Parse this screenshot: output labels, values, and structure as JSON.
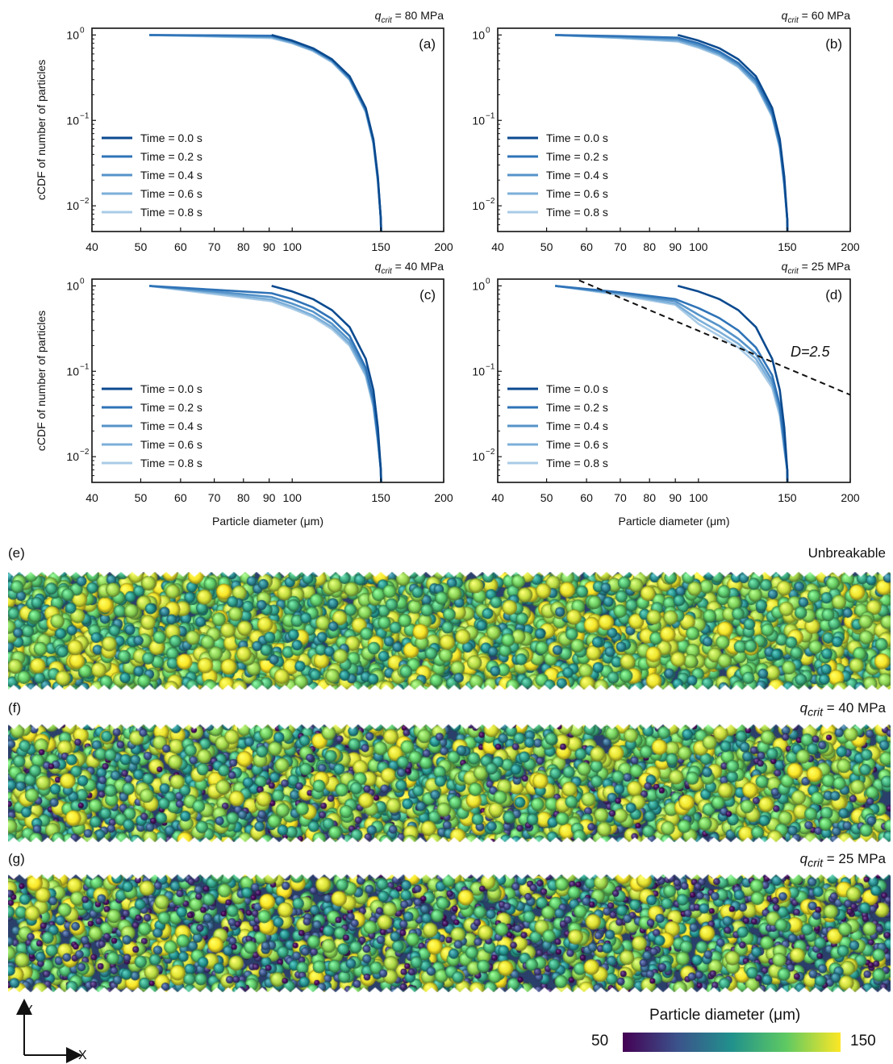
{
  "chart_data": [
    {
      "panel_label": "(a)",
      "corner_label": "= 80 MPa",
      "type": "line",
      "xscale": "log",
      "yscale": "log",
      "xlim": [
        40,
        200
      ],
      "ylim": [
        0.005,
        1.2
      ],
      "xticks": [
        "40",
        "50",
        "60",
        "70",
        "80",
        "90",
        "100",
        "150",
        "200"
      ],
      "ylabel": "cCDF of number of particles",
      "xlabel": "",
      "series": [
        {
          "name": "Time = 0.0 s",
          "x": [
            91,
            100,
            110,
            120,
            130,
            140,
            145,
            148,
            150,
            150.2
          ],
          "y": [
            1.0,
            0.86,
            0.7,
            0.52,
            0.33,
            0.14,
            0.06,
            0.022,
            0.007,
            0.005
          ]
        },
        {
          "name": "Time = 0.2 s",
          "x": [
            52,
            70,
            91,
            100,
            110,
            120,
            130,
            140,
            145,
            148,
            150,
            150.2
          ],
          "y": [
            1.0,
            0.99,
            0.98,
            0.85,
            0.69,
            0.51,
            0.32,
            0.135,
            0.058,
            0.021,
            0.007,
            0.005
          ]
        },
        {
          "name": "Time = 0.4 s",
          "x": [
            52,
            70,
            91,
            100,
            110,
            120,
            130,
            140,
            145,
            148,
            150,
            150.2
          ],
          "y": [
            1.0,
            0.98,
            0.96,
            0.83,
            0.67,
            0.5,
            0.31,
            0.13,
            0.056,
            0.02,
            0.007,
            0.005
          ]
        },
        {
          "name": "Time = 0.6 s",
          "x": [
            52,
            70,
            91,
            100,
            110,
            120,
            130,
            140,
            145,
            148,
            150,
            150.2
          ],
          "y": [
            1.0,
            0.97,
            0.94,
            0.81,
            0.66,
            0.49,
            0.3,
            0.127,
            0.054,
            0.02,
            0.007,
            0.005
          ]
        },
        {
          "name": "Time = 0.8 s",
          "x": [
            52,
            70,
            91,
            100,
            110,
            120,
            130,
            140,
            145,
            148,
            150,
            150.2
          ],
          "y": [
            1.0,
            0.96,
            0.92,
            0.8,
            0.65,
            0.48,
            0.3,
            0.125,
            0.053,
            0.019,
            0.007,
            0.005
          ]
        }
      ]
    },
    {
      "panel_label": "(b)",
      "corner_label": "= 60 MPa",
      "type": "line",
      "xscale": "log",
      "yscale": "log",
      "xlim": [
        40,
        200
      ],
      "ylim": [
        0.005,
        1.2
      ],
      "xticks": [
        "40",
        "50",
        "60",
        "70",
        "80",
        "90",
        "100",
        "150",
        "200"
      ],
      "ylabel": "",
      "xlabel": "",
      "series": [
        {
          "name": "Time = 0.0 s",
          "x": [
            91,
            100,
            110,
            120,
            130,
            140,
            145,
            148,
            150,
            150.2
          ],
          "y": [
            1.0,
            0.86,
            0.7,
            0.52,
            0.33,
            0.14,
            0.06,
            0.022,
            0.007,
            0.005
          ]
        },
        {
          "name": "Time = 0.2 s",
          "x": [
            52,
            70,
            91,
            100,
            110,
            120,
            130,
            140,
            145,
            148,
            150,
            150.2
          ],
          "y": [
            1.0,
            0.97,
            0.93,
            0.8,
            0.64,
            0.47,
            0.3,
            0.125,
            0.053,
            0.019,
            0.007,
            0.005
          ]
        },
        {
          "name": "Time = 0.4 s",
          "x": [
            52,
            70,
            91,
            100,
            110,
            120,
            130,
            140,
            145,
            148,
            150,
            150.2
          ],
          "y": [
            1.0,
            0.95,
            0.89,
            0.76,
            0.61,
            0.45,
            0.28,
            0.118,
            0.05,
            0.018,
            0.007,
            0.005
          ]
        },
        {
          "name": "Time = 0.6 s",
          "x": [
            52,
            70,
            91,
            100,
            110,
            120,
            130,
            140,
            145,
            148,
            150,
            150.2
          ],
          "y": [
            1.0,
            0.93,
            0.86,
            0.73,
            0.59,
            0.43,
            0.27,
            0.113,
            0.048,
            0.018,
            0.007,
            0.005
          ]
        },
        {
          "name": "Time = 0.8 s",
          "x": [
            52,
            70,
            91,
            100,
            110,
            120,
            130,
            140,
            145,
            148,
            150,
            150.2
          ],
          "y": [
            1.0,
            0.92,
            0.84,
            0.71,
            0.57,
            0.42,
            0.26,
            0.11,
            0.047,
            0.017,
            0.007,
            0.005
          ]
        }
      ]
    },
    {
      "panel_label": "(c)",
      "corner_label": "= 40 MPa",
      "type": "line",
      "xscale": "log",
      "yscale": "log",
      "xlim": [
        40,
        200
      ],
      "ylim": [
        0.005,
        1.2
      ],
      "xticks": [
        "40",
        "50",
        "60",
        "70",
        "80",
        "90",
        "100",
        "150",
        "200"
      ],
      "ylabel": "cCDF of number of particles",
      "xlabel": "Particle diameter (μm)",
      "series": [
        {
          "name": "Time = 0.0 s",
          "x": [
            91,
            100,
            110,
            120,
            130,
            140,
            145,
            148,
            150,
            150.2
          ],
          "y": [
            1.0,
            0.86,
            0.7,
            0.52,
            0.33,
            0.14,
            0.06,
            0.022,
            0.007,
            0.005
          ]
        },
        {
          "name": "Time = 0.2 s",
          "x": [
            52,
            70,
            91,
            100,
            110,
            120,
            130,
            140,
            145,
            148,
            150,
            150.2
          ],
          "y": [
            1.0,
            0.9,
            0.82,
            0.7,
            0.56,
            0.41,
            0.26,
            0.11,
            0.047,
            0.017,
            0.007,
            0.005
          ]
        },
        {
          "name": "Time = 0.4 s",
          "x": [
            52,
            70,
            91,
            100,
            110,
            120,
            130,
            140,
            145,
            148,
            150,
            150.2
          ],
          "y": [
            1.0,
            0.86,
            0.74,
            0.62,
            0.5,
            0.36,
            0.23,
            0.1,
            0.043,
            0.016,
            0.007,
            0.005
          ]
        },
        {
          "name": "Time = 0.6 s",
          "x": [
            52,
            70,
            91,
            100,
            110,
            120,
            130,
            140,
            145,
            148,
            150,
            150.2
          ],
          "y": [
            1.0,
            0.83,
            0.69,
            0.57,
            0.45,
            0.33,
            0.21,
            0.092,
            0.04,
            0.015,
            0.007,
            0.005
          ]
        },
        {
          "name": "Time = 0.8 s",
          "x": [
            52,
            70,
            91,
            100,
            110,
            120,
            130,
            140,
            145,
            148,
            150,
            150.2
          ],
          "y": [
            1.0,
            0.8,
            0.66,
            0.54,
            0.43,
            0.31,
            0.2,
            0.088,
            0.038,
            0.015,
            0.007,
            0.005
          ]
        }
      ]
    },
    {
      "panel_label": "(d)",
      "corner_label": "= 25 MPa",
      "type": "line",
      "xscale": "log",
      "yscale": "log",
      "xlim": [
        40,
        200
      ],
      "ylim": [
        0.005,
        1.2
      ],
      "xticks": [
        "40",
        "50",
        "60",
        "70",
        "80",
        "90",
        "100",
        "150",
        "200"
      ],
      "ylabel": "",
      "xlabel": "Particle diameter (μm)",
      "annotation": "D=2.5",
      "reference_line": {
        "x": [
          58,
          200
        ],
        "y": [
          1.16,
          0.053
        ]
      },
      "series": [
        {
          "name": "Time = 0.0 s",
          "x": [
            91,
            100,
            110,
            120,
            130,
            140,
            145,
            148,
            150,
            150.2
          ],
          "y": [
            1.0,
            0.86,
            0.7,
            0.52,
            0.33,
            0.14,
            0.06,
            0.022,
            0.007,
            0.005
          ]
        },
        {
          "name": "Time = 0.2 s",
          "x": [
            52,
            70,
            90,
            100,
            110,
            120,
            130,
            140,
            145,
            148,
            150,
            150.2
          ],
          "y": [
            1.0,
            0.84,
            0.7,
            0.55,
            0.42,
            0.3,
            0.19,
            0.09,
            0.04,
            0.015,
            0.007,
            0.005
          ]
        },
        {
          "name": "Time = 0.4 s",
          "x": [
            52,
            70,
            90,
            100,
            110,
            120,
            130,
            140,
            145,
            148,
            150,
            150.2
          ],
          "y": [
            1.0,
            0.82,
            0.66,
            0.46,
            0.34,
            0.24,
            0.16,
            0.078,
            0.036,
            0.014,
            0.007,
            0.005
          ]
        },
        {
          "name": "Time = 0.6 s",
          "x": [
            52,
            70,
            90,
            100,
            110,
            120,
            130,
            140,
            145,
            148,
            150,
            150.2
          ],
          "y": [
            1.0,
            0.8,
            0.62,
            0.4,
            0.29,
            0.21,
            0.14,
            0.07,
            0.033,
            0.013,
            0.007,
            0.005
          ]
        },
        {
          "name": "Time = 0.8 s",
          "x": [
            52,
            70,
            90,
            100,
            110,
            120,
            130,
            140,
            145,
            148,
            150,
            150.2
          ],
          "y": [
            1.0,
            0.78,
            0.6,
            0.36,
            0.26,
            0.19,
            0.125,
            0.064,
            0.03,
            0.012,
            0.007,
            0.005
          ]
        }
      ]
    }
  ],
  "series_colors": [
    "#0b4a8f",
    "#2f73b7",
    "#5593c9",
    "#7cafd9",
    "#a9cbe6"
  ],
  "qcrit_symbol": "q",
  "qcrit_subscript": "crit",
  "ytick_base": "10",
  "ytick_exponents": [
    "0",
    "−1",
    "−2"
  ],
  "snapshots": [
    {
      "label": "(e)",
      "title": "Unbreakable"
    },
    {
      "label": "(f)",
      "title_rest": "= 40 MPa"
    },
    {
      "label": "(g)",
      "title_rest": "= 25 MPa"
    }
  ],
  "colorbar": {
    "title": "Particle diameter (μm)",
    "min": "50",
    "max": "150",
    "colors": [
      "#440154",
      "#3b528b",
      "#21918c",
      "#5ec962",
      "#fde725"
    ]
  },
  "axes_indicator": {
    "y": "Y",
    "x": "X"
  }
}
